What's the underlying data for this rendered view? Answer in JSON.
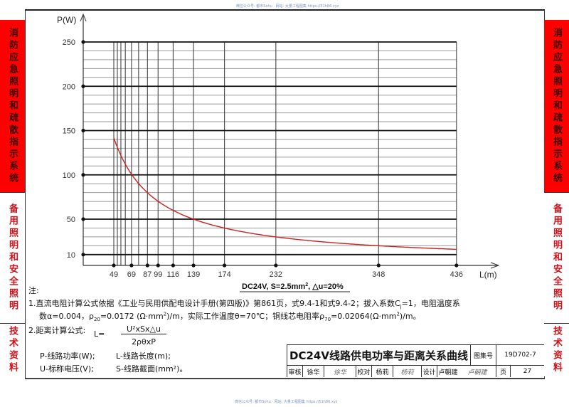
{
  "watermark_top": "微信公众号: 都市Sohu · 网站: 大量工程图集 https://51h86.xyz",
  "watermark_bottom": "微信公众号: 都市Sohu · 网站: 大量工程图集 https://51h86.xyz",
  "left_sidebar": {
    "section1": "消防应急照明和疏散指示系统",
    "section2": "备用照明和安全照明",
    "section3": "技术资料"
  },
  "right_sidebar": {
    "section1": "消防应急照明和疏散指示系统",
    "section2": "备用照明和安全照明",
    "section3": "技术资料"
  },
  "chart_data": {
    "type": "line",
    "title": "DC24V线路供电功率与距离关系曲线",
    "subtitle": "DC24V, S=2.5mm², △u=20%",
    "xlabel": "L(m)",
    "ylabel": "P(W)",
    "x_ticks": [
      49,
      69,
      87,
      99,
      116,
      139,
      174,
      232,
      348,
      436
    ],
    "y_ticks": [
      10,
      50,
      100,
      150,
      200,
      250
    ],
    "xlim": [
      49,
      436
    ],
    "ylim": [
      10,
      250
    ],
    "minor_x_gridlines": [
      53,
      57,
      62,
      77
    ],
    "minor_y_gridlines_step": 10,
    "grid": true,
    "series": [
      {
        "name": "DC24V, S=2.5mm², △u=20%",
        "color": "#d01f1f",
        "x": [
          49,
          69,
          87,
          99,
          116,
          139,
          174,
          232,
          348,
          436
        ],
        "values": [
          142,
          100,
          80,
          70,
          60,
          50,
          40,
          30,
          20,
          16
        ]
      }
    ]
  },
  "axis": {
    "y_label": "P(W)",
    "x_label": "L(m)",
    "y_tick_labels": [
      "250",
      "200",
      "150",
      "100",
      "50",
      "10"
    ],
    "x_tick_labels": [
      "49",
      "69",
      "87",
      "99",
      "116",
      "139",
      "174",
      "232",
      "348",
      "436"
    ],
    "caption_main": "DC24V, S=2.5mm",
    "caption_sup": "2",
    "caption_tail": ", △u=20%"
  },
  "notes": {
    "heading": "注:",
    "line1": "1.直流电阻计算公式依据《工业与民用供配电设计手册(第四版)》第861页，式9.4-1和式9.4-2；拔入系数C",
    "line1_sub": "j",
    "line1_tail": "=1，电阻温度系",
    "line2_a": "数α=0.004，ρ",
    "line2_sub1": "20",
    "line2_b": "=0.0172 (Ω·mm",
    "line2_sup1": "2",
    "line2_c": ")/m，实际工作温度θ=70℃；铜线芯电阻率ρ",
    "line2_sub2": "70",
    "line2_d": "=0.02064(Ω·mm",
    "line2_sup2": "2",
    "line2_e": ")/m。",
    "line3": "2.距离计算公式:",
    "formula_lhs": "L=",
    "formula_num": "U²xSx△u",
    "formula_den": "2ρθxP",
    "def1": "P-线路功率(W);",
    "def2": "L-线路长度(m);",
    "def3": "U-标称电压(V);",
    "def4": "S-线路截面(mm²)。"
  },
  "title_block": {
    "title": "DC24V线路供电功率与距离关系曲线",
    "atlas_label": "图集号",
    "atlas_no": "19D702-7",
    "review_label": "审核",
    "reviewer": "徐华",
    "reviewer_sig": "徐华",
    "check_label": "校对",
    "checker": "杨莉",
    "checker_sig": "杨莉",
    "design_label": "设计",
    "designer": "卢朝建",
    "designer_sig": "卢朝建",
    "page_label": "页",
    "page_no": "27"
  }
}
